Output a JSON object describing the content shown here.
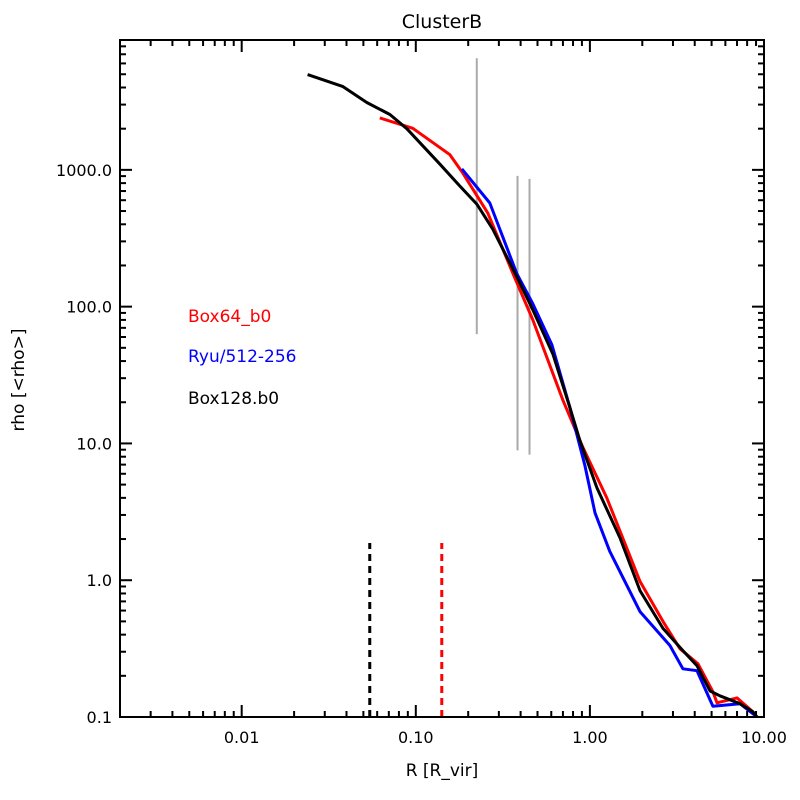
{
  "chart_data": {
    "type": "line",
    "title": "ClusterB",
    "xlabel": "R [R_vir]",
    "ylabel": "rho [<rho>]",
    "xscale": "log",
    "yscale": "log",
    "xlim": [
      0.002,
      10
    ],
    "ylim": [
      0.1,
      8900
    ],
    "grid": false,
    "legend_placement": "left-middle",
    "xticks": [
      {
        "v": 0.01,
        "label": "0.01"
      },
      {
        "v": 0.1,
        "label": "0.10"
      },
      {
        "v": 1,
        "label": "1.00"
      },
      {
        "v": 10,
        "label": "10.00"
      }
    ],
    "yticks": [
      {
        "v": 0.1,
        "label": "0.1"
      },
      {
        "v": 1,
        "label": "1.0"
      },
      {
        "v": 10,
        "label": "10.0"
      },
      {
        "v": 100,
        "label": "100.0"
      },
      {
        "v": 1000,
        "label": "1000.0"
      }
    ],
    "series": [
      {
        "name": "Box64_b0",
        "color": "#ff0000",
        "x": [
          0.0621,
          0.0961,
          0.157,
          0.186,
          0.259,
          0.361,
          0.47,
          0.7,
          0.912,
          1.25,
          1.94,
          2.63,
          3.29,
          4.18,
          5.09,
          5.37,
          7.0,
          8.65,
          9.12
        ],
        "y": [
          2400,
          2012,
          1290,
          950,
          483,
          175,
          80,
          20.7,
          9.35,
          4.0,
          0.98,
          0.5,
          0.316,
          0.245,
          0.153,
          0.127,
          0.138,
          0.109,
          0.1
        ]
      },
      {
        "name": "Ryu/512-256",
        "color": "#0000ff",
        "x": [
          0.184,
          0.266,
          0.38,
          0.47,
          0.605,
          0.767,
          0.936,
          1.07,
          1.3,
          1.94,
          2.88,
          3.42,
          4.12,
          5.09,
          7.28,
          9.12
        ],
        "y": [
          1017,
          572,
          175,
          105,
          52.6,
          18.4,
          6.9,
          3.11,
          1.63,
          0.59,
          0.333,
          0.225,
          0.218,
          0.12,
          0.125,
          0.1
        ]
      },
      {
        "name": "Box128.b0",
        "color": "#000000",
        "x": [
          0.0239,
          0.038,
          0.0523,
          0.071,
          0.0888,
          0.137,
          0.179,
          0.224,
          0.277,
          0.38,
          0.47,
          0.613,
          0.767,
          0.876,
          1.097,
          1.49,
          1.94,
          2.63,
          3.42,
          4.12,
          4.9,
          5.58,
          7.28,
          8.65,
          9.12
        ],
        "y": [
          4970,
          4075,
          3110,
          2540,
          2000,
          1107,
          762,
          562,
          368,
          166,
          95,
          45,
          18.4,
          10.5,
          4.74,
          2.04,
          0.84,
          0.444,
          0.306,
          0.237,
          0.155,
          0.143,
          0.125,
          0.109,
          0.1
        ]
      }
    ],
    "vertical_markers": [
      {
        "x": 0.224,
        "y": [
          63,
          6550
        ],
        "color": "#aaaaaa",
        "style": "solid"
      },
      {
        "x": 0.384,
        "y": [
          8.9,
          903
        ],
        "color": "#aaaaaa",
        "style": "solid"
      },
      {
        "x": 0.45,
        "y": [
          8.28,
          860
        ],
        "color": "#aaaaaa",
        "style": "solid"
      },
      {
        "x": 0.0544,
        "y": [
          0.1,
          1.87
        ],
        "color": "#000000",
        "style": "dashed"
      },
      {
        "x": 0.141,
        "y": [
          0.1,
          1.87
        ],
        "color": "#ff0000",
        "style": "dashed"
      }
    ]
  }
}
